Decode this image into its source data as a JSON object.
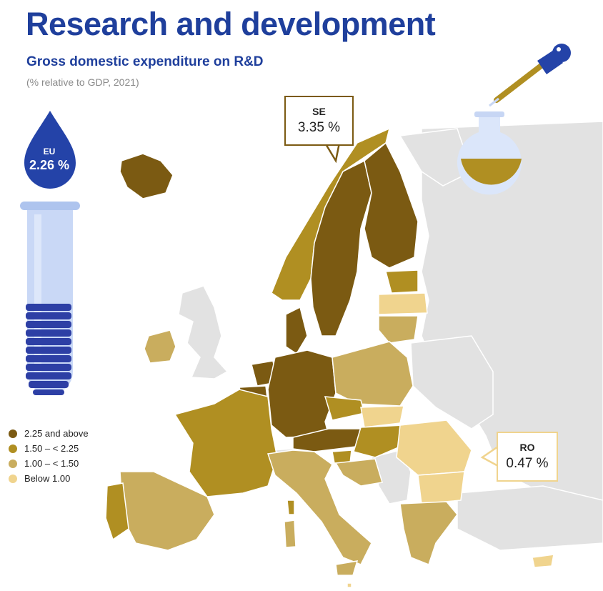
{
  "title": "Research and development",
  "subtitle": "Gross domestic expenditure on R&D",
  "note": "(% relative to GDP, 2021)",
  "eu": {
    "label": "EU",
    "value": "2.26 %"
  },
  "legend": [
    {
      "label": "2.25 and above",
      "color": "#7b5a12"
    },
    {
      "label": "1.50 – < 2.25",
      "color": "#b08f22"
    },
    {
      "label": "1.00 – < 1.50",
      "color": "#c9ad5e"
    },
    {
      "label": "Below 1.00",
      "color": "#f0d48e"
    }
  ],
  "callouts": [
    {
      "country": "SE",
      "value": "3.35 %",
      "border": "#7b5a12"
    },
    {
      "country": "RO",
      "value": "0.47 %",
      "border": "#f0d48e"
    }
  ],
  "colors": {
    "brand_blue": "#1f3f9c",
    "non_eu": "#e2e2e2",
    "sea": "#ffffff"
  }
}
